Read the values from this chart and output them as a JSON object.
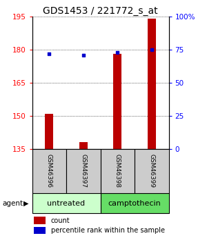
{
  "title": "GDS1453 / 221772_s_at",
  "samples": [
    "GSM46396",
    "GSM46397",
    "GSM46398",
    "GSM46399"
  ],
  "count_values": [
    151,
    138,
    178,
    194
  ],
  "percentile_values": [
    72,
    71,
    73,
    75
  ],
  "ylim_left": [
    135,
    195
  ],
  "ylim_right": [
    0,
    100
  ],
  "yticks_left": [
    135,
    150,
    165,
    180,
    195
  ],
  "yticks_right": [
    0,
    25,
    50,
    75,
    100
  ],
  "ytick_labels_right": [
    "0",
    "25",
    "50",
    "75",
    "100%"
  ],
  "bar_color": "#bb0000",
  "dot_color": "#0000cc",
  "bar_width": 0.25,
  "group1_label": "untreated",
  "group1_color": "#ccffcc",
  "group2_label": "camptothecin",
  "group2_color": "#66dd66",
  "sample_box_color": "#cccccc",
  "agent_label": "agent",
  "legend_count": "count",
  "legend_pct": "percentile rank within the sample",
  "title_fontsize": 10,
  "tick_fontsize": 7.5,
  "sample_fontsize": 6.5,
  "group_fontsize": 8,
  "legend_fontsize": 7
}
